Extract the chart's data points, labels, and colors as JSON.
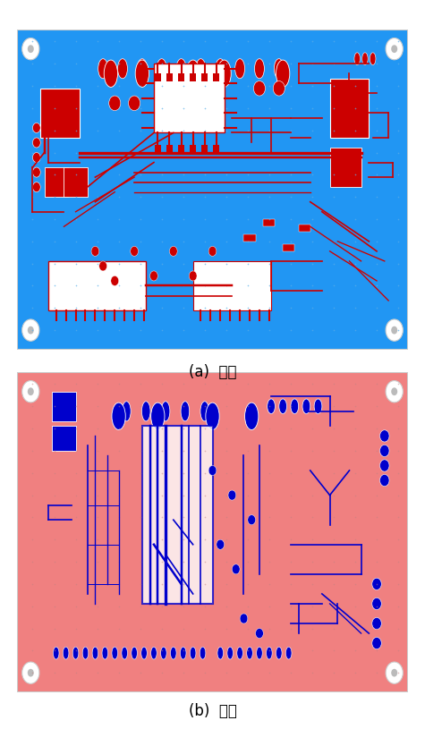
{
  "fig_width": 4.75,
  "fig_height": 8.15,
  "fig_dpi": 100,
  "background_color": "#ffffff",
  "top_pcb": {
    "bg_color": "#2196F3",
    "circuit_color": "#CC0000",
    "highlight_color": "#ffffff",
    "border_color": "#dddddd",
    "label": "(a)  앞면",
    "label_fontsize": 12
  },
  "bottom_pcb": {
    "bg_color": "#F08080",
    "circuit_color": "#0000CC",
    "highlight_color": "#ffffff",
    "border_color": "#dddddd",
    "label": "(b)  뒷면",
    "label_fontsize": 12
  },
  "corner_dot_color": "#ffffff",
  "corner_hole_color": "#e0e0e0",
  "grid_dot_color": "#5baee8",
  "grid_dot_color2": "#d4a0a0"
}
